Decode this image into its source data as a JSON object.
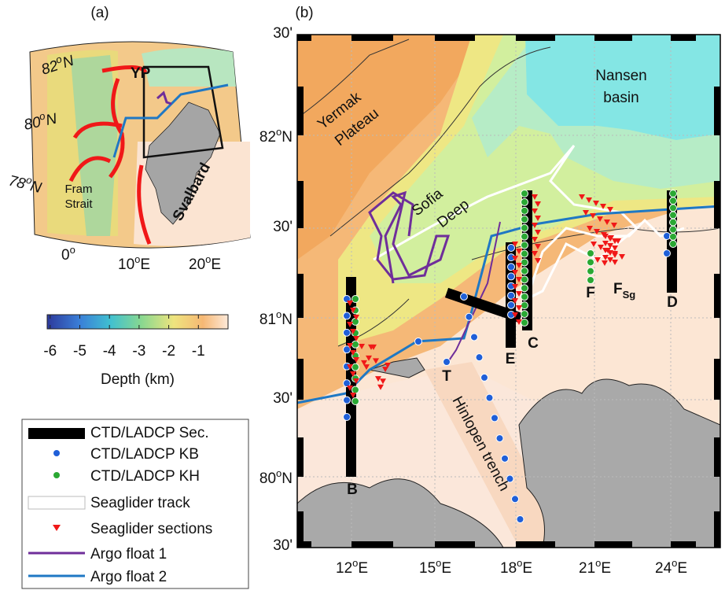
{
  "panel_a": {
    "label": "(a)",
    "lat_labels": [
      [
        "82",
        "o",
        "N"
      ],
      [
        "80",
        "o",
        "N"
      ],
      [
        "78",
        "o",
        "N"
      ]
    ],
    "lon_labels": [
      [
        "0",
        "o"
      ],
      [
        "10",
        "o",
        "E"
      ],
      [
        "20",
        "o",
        "E"
      ]
    ],
    "places": {
      "yp": "YP",
      "fram": [
        "Fram",
        "Strait"
      ],
      "svalbard": "Svalbard"
    }
  },
  "colorbar": {
    "lim": [
      -6.1,
      0
    ],
    "ticks": [
      -6,
      -5,
      -4,
      -3,
      -2,
      -1
    ],
    "label": "Depth (km)"
  },
  "legend": [
    "CTD/LADCP Sec.",
    "CTD/LADCP KB",
    "CTD/LADCP KH",
    "Seaglider track",
    "Seaglider sections",
    "Argo float 1",
    "Argo float 2"
  ],
  "panel_b": {
    "label": "(b)",
    "lat_labels": [
      "30'",
      [
        "82",
        "o",
        "N"
      ],
      "30'",
      [
        "81",
        "o",
        "N"
      ],
      "30'",
      [
        "80",
        "o",
        "N"
      ],
      "30'"
    ],
    "lon_labels": [
      [
        "12",
        "o",
        "E"
      ],
      [
        "15",
        "o",
        "E"
      ],
      [
        "18",
        "o",
        "E"
      ],
      [
        "21",
        "o",
        "E"
      ],
      [
        "24",
        "o",
        "E"
      ]
    ],
    "places": {
      "yermak": [
        "Yermak",
        "Plateau"
      ],
      "nansen": [
        "Nansen",
        "basin"
      ],
      "sofia": [
        "Sofia",
        "Deep"
      ],
      "hinlopen": "Hinlopen trench"
    },
    "sections": {
      "B": "B",
      "C": "C",
      "D": "D",
      "E": "E",
      "F": "F",
      "Fsg": [
        "F",
        "Sg"
      ],
      "T": "T"
    }
  }
}
